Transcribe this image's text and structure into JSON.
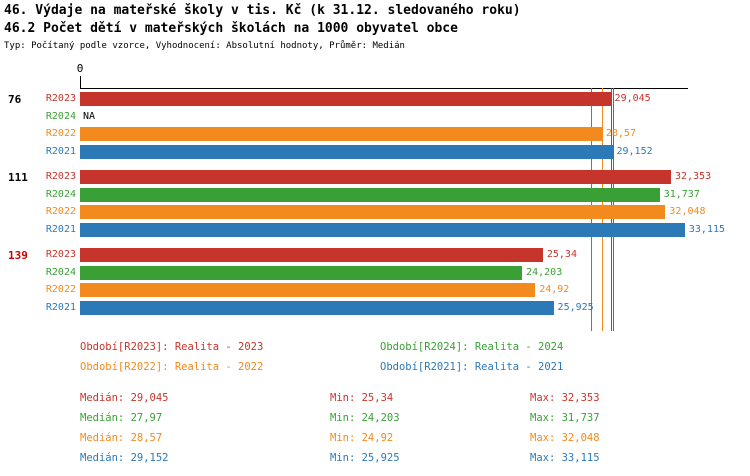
{
  "header": {
    "title1": "46. Výdaje na mateřské školy v tis. Kč (k 31.12. sledovaného roku)",
    "title2": "46.2 Počet dětí v mateřských školách na 1000 obyvatel obce",
    "subtitle": "Typ: Počítaný podle vzorce, Vyhodnocení: Absolutní hodnoty, Průměr: Medián"
  },
  "colors": {
    "R2023": "#c5352b",
    "R2024": "#3aa035",
    "R2022": "#f28a1e",
    "R2021": "#2c79b8"
  },
  "chart_data": {
    "type": "bar",
    "orientation": "horizontal",
    "axis": {
      "origin_label": "0",
      "xmax": 33.23
    },
    "series_order": [
      "R2023",
      "R2024",
      "R2022",
      "R2021"
    ],
    "groups": [
      {
        "label": "76",
        "label_color": "#000000",
        "bars": [
          {
            "series": "R2023",
            "value": 29.045,
            "display": "29,045"
          },
          {
            "series": "R2024",
            "value": null,
            "display": "NA"
          },
          {
            "series": "R2022",
            "value": 28.57,
            "display": "28,57"
          },
          {
            "series": "R2021",
            "value": 29.152,
            "display": "29,152"
          }
        ]
      },
      {
        "label": "111",
        "label_color": "#000000",
        "bars": [
          {
            "series": "R2023",
            "value": 32.353,
            "display": "32,353"
          },
          {
            "series": "R2024",
            "value": 31.737,
            "display": "31,737"
          },
          {
            "series": "R2022",
            "value": 32.048,
            "display": "32,048"
          },
          {
            "series": "R2021",
            "value": 33.115,
            "display": "33,115"
          }
        ]
      },
      {
        "label": "139",
        "label_color": "#cc0000",
        "bars": [
          {
            "series": "R2023",
            "value": 25.34,
            "display": "25,34"
          },
          {
            "series": "R2024",
            "value": 24.203,
            "display": "24,203"
          },
          {
            "series": "R2022",
            "value": 24.92,
            "display": "24,92"
          },
          {
            "series": "R2021",
            "value": 25.925,
            "display": "25,925"
          }
        ]
      }
    ],
    "medians": [
      {
        "series": "R2023",
        "value": 29.045
      },
      {
        "series": "R2024",
        "value": 27.97
      },
      {
        "series": "R2022",
        "value": 28.57
      },
      {
        "series": "R2021",
        "value": 29.152
      }
    ]
  },
  "legend": [
    {
      "series": "R2023",
      "label": "Období[R2023]: Realita - 2023",
      "col": 0,
      "row": 0
    },
    {
      "series": "R2024",
      "label": "Období[R2024]: Realita - 2024",
      "col": 1,
      "row": 0
    },
    {
      "series": "R2022",
      "label": "Období[R2022]: Realita - 2022",
      "col": 0,
      "row": 1
    },
    {
      "series": "R2021",
      "label": "Období[R2021]: Realita - 2021",
      "col": 1,
      "row": 1
    }
  ],
  "stats": [
    {
      "series": "R2023",
      "median": "Medián: 29,045",
      "min": "Min: 25,34",
      "max": "Max: 32,353"
    },
    {
      "series": "R2024",
      "median": "Medián: 27,97",
      "min": "Min: 24,203",
      "max": "Max: 31,737"
    },
    {
      "series": "R2022",
      "median": "Medián: 28,57",
      "min": "Min: 24,92",
      "max": "Max: 32,048"
    },
    {
      "series": "R2021",
      "median": "Medián: 29,152",
      "min": "Min: 25,925",
      "max": "Max: 33,115"
    }
  ]
}
